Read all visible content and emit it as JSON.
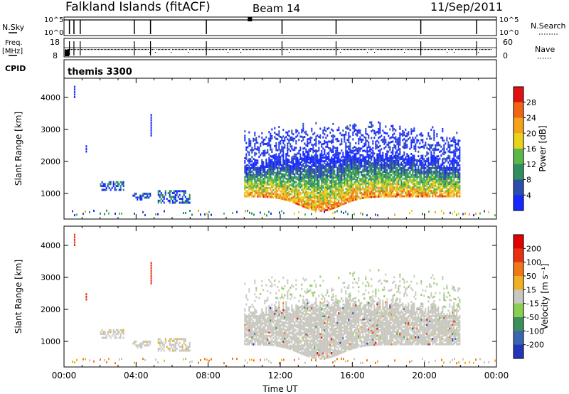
{
  "header": {
    "station": "Falkland Islands (fitACF)",
    "beam": "Beam 14",
    "date": "11/Sep/2011"
  },
  "nsky_panel": {
    "label": "N.Sky",
    "tick_top": "10^5",
    "tick_bottom": "10^0",
    "right_label": "N.Search",
    "right_tick_top": "10^5",
    "right_tick_bottom": "10^0"
  },
  "freq_panel": {
    "label_line1": "Freq.",
    "label_line2": "[MHz]",
    "tick_top": "18",
    "tick_bottom": "8",
    "right_label": "Nave",
    "right_tick_top": "60",
    "right_tick_bottom": "0"
  },
  "cpid": {
    "label": "CPID",
    "value": "themis 3300"
  },
  "colors": {
    "velocity_ground_scatter": "#c8c8c0"
  },
  "chart_data": [
    {
      "type": "heatmap",
      "title": "",
      "ylabel": "Slant Range [km]",
      "xlabel": "",
      "y_ticks": [
        "1000",
        "2000",
        "3000",
        "4000"
      ],
      "ylim": [
        200,
        4600
      ],
      "xlim": [
        "00:00",
        "24:00"
      ],
      "colorbar": {
        "label": "Power [dB]",
        "ticks": [
          "4",
          "8",
          "12",
          "16",
          "20",
          "24",
          "28"
        ],
        "colors": [
          "#1528ff",
          "#2b4ea8",
          "#2e8f5e",
          "#5ab84a",
          "#e8d21a",
          "#f4a21a",
          "#f06414",
          "#e01010"
        ]
      },
      "scatter_regions": [
        {
          "t_start": 10.0,
          "t_end": 22.0,
          "range_low": 400,
          "range_high": 3400,
          "core": "strong"
        },
        {
          "t_start": 2.0,
          "t_end": 3.3,
          "range_low": 1100,
          "range_high": 1350,
          "core": "weak"
        },
        {
          "t_start": 3.8,
          "t_end": 4.8,
          "range_low": 800,
          "range_high": 1000,
          "core": "weak"
        },
        {
          "t_start": 5.2,
          "t_end": 7.0,
          "range_low": 700,
          "range_high": 1100,
          "core": "weak"
        }
      ]
    },
    {
      "type": "heatmap",
      "title": "",
      "ylabel": "Slant Range [km]",
      "xlabel": "Time UT",
      "x_ticks": [
        "00:00",
        "04:00",
        "08:00",
        "12:00",
        "16:00",
        "20:00",
        "00:00"
      ],
      "y_ticks": [
        "1000",
        "2000",
        "3000",
        "4000"
      ],
      "ylim": [
        200,
        4600
      ],
      "colorbar": {
        "label": "Velocity [m s⁻¹]",
        "ticks": [
          "200",
          "100",
          "50",
          "15",
          "-15",
          "-50",
          "-100",
          "-200"
        ],
        "colors": [
          "#2436b8",
          "#3a66b0",
          "#3c8f5a",
          "#8ad050",
          "#c8c8c0",
          "#f0b020",
          "#f07818",
          "#e83010",
          "#e00000"
        ]
      }
    }
  ]
}
